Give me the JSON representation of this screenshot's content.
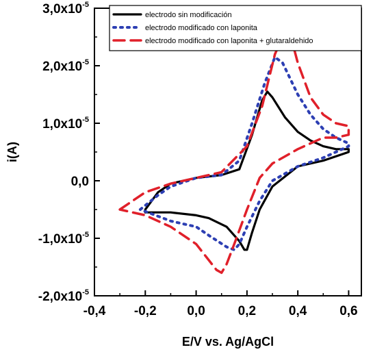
{
  "chart_data": {
    "type": "line",
    "xlabel": "E/V vs. Ag/AgCl",
    "ylabel": "i(A)",
    "xlim": [
      -0.4,
      0.65
    ],
    "ylim": [
      -2e-05,
      3e-05
    ],
    "x_ticks": [
      -0.4,
      -0.2,
      0.0,
      0.2,
      0.4,
      0.6
    ],
    "x_tick_labels": [
      "-0,4",
      "-0,2",
      "0,0",
      "0,2",
      "0,4",
      "0,6"
    ],
    "y_ticks": [
      -2e-05,
      -1e-05,
      0.0,
      1e-05,
      2e-05,
      3e-05
    ],
    "y_tick_labels": [
      {
        "mantissa": "-2,0x10",
        "exp": "-5"
      },
      {
        "mantissa": "-1,0x10",
        "exp": "-5"
      },
      {
        "mantissa": "0,0",
        "exp": ""
      },
      {
        "mantissa": "1,0x10",
        "exp": "-5"
      },
      {
        "mantissa": "2,0x10",
        "exp": "-5"
      },
      {
        "mantissa": "3,0x10",
        "exp": "-5"
      }
    ],
    "legend_position": "top-right",
    "grid": false,
    "series": [
      {
        "name": "electrodo sin modificación",
        "color": "#000000",
        "style": "solid",
        "x": [
          -0.2,
          -0.15,
          -0.1,
          0.0,
          0.1,
          0.17,
          0.22,
          0.26,
          0.28,
          0.3,
          0.35,
          0.4,
          0.45,
          0.5,
          0.55,
          0.6,
          0.6,
          0.5,
          0.4,
          0.3,
          0.25,
          0.22,
          0.2,
          0.19,
          0.17,
          0.12,
          0.05,
          0.0,
          -0.1,
          -0.2,
          -0.2
        ],
        "y": [
          -5e-06,
          -2e-06,
          -5e-07,
          5e-07,
          1e-06,
          2e-06,
          8e-06,
          1.4e-05,
          1.55e-05,
          1.45e-05,
          1.1e-05,
          8.5e-06,
          7e-06,
          6e-06,
          5.5e-06,
          5.5e-06,
          5e-06,
          3.5e-06,
          2.5e-06,
          -1e-06,
          -5e-06,
          -9e-06,
          -1.2e-05,
          -1.2e-05,
          -1.05e-05,
          -8e-06,
          -6.5e-06,
          -6e-06,
          -5.5e-06,
          -5.5e-06,
          -5e-06
        ]
      },
      {
        "name": "electrodo modificado con laponita",
        "color": "#2d3fb3",
        "style": "dotted",
        "x": [
          -0.22,
          -0.15,
          -0.1,
          0.0,
          0.1,
          0.17,
          0.22,
          0.27,
          0.31,
          0.34,
          0.4,
          0.45,
          0.5,
          0.55,
          0.6,
          0.6,
          0.5,
          0.4,
          0.3,
          0.25,
          0.2,
          0.17,
          0.15,
          0.12,
          0.05,
          0.0,
          -0.1,
          -0.22
        ],
        "y": [
          -5e-06,
          -2.5e-06,
          -1e-06,
          5e-07,
          1e-06,
          3.5e-06,
          1e-05,
          1.7e-05,
          2.15e-05,
          2.05e-05,
          1.5e-05,
          1.15e-05,
          9e-06,
          7.5e-06,
          6.5e-06,
          6e-06,
          4e-06,
          2.5e-06,
          0.0,
          -3.5e-06,
          -8e-06,
          -1.1e-05,
          -1.2e-05,
          -1.15e-05,
          -9.5e-06,
          -8e-06,
          -7e-06,
          -5e-06
        ]
      },
      {
        "name": "electrodo modificado con laponita + glutaraldehido",
        "color": "#e0202a",
        "style": "dashed",
        "x": [
          -0.3,
          -0.2,
          -0.1,
          0.0,
          0.1,
          0.2,
          0.26,
          0.31,
          0.35,
          0.37,
          0.4,
          0.45,
          0.5,
          0.55,
          0.6,
          0.6,
          0.55,
          0.5,
          0.4,
          0.3,
          0.25,
          0.2,
          0.15,
          0.12,
          0.1,
          0.08,
          0.0,
          -0.1,
          -0.2,
          -0.3
        ],
        "y": [
          -5e-06,
          -2e-06,
          -5e-07,
          5e-07,
          1.5e-06,
          6e-06,
          1.3e-05,
          2.2e-05,
          2.6e-05,
          2.55e-05,
          2.05e-05,
          1.45e-05,
          1.15e-05,
          1e-05,
          9.5e-06,
          8e-06,
          7.5e-06,
          7.5e-06,
          5.5e-06,
          3e-06,
          5e-07,
          -5e-06,
          -1.1e-05,
          -1.45e-05,
          -1.6e-05,
          -1.55e-05,
          -1.1e-05,
          -8e-06,
          -6e-06,
          -5e-06
        ]
      }
    ]
  }
}
